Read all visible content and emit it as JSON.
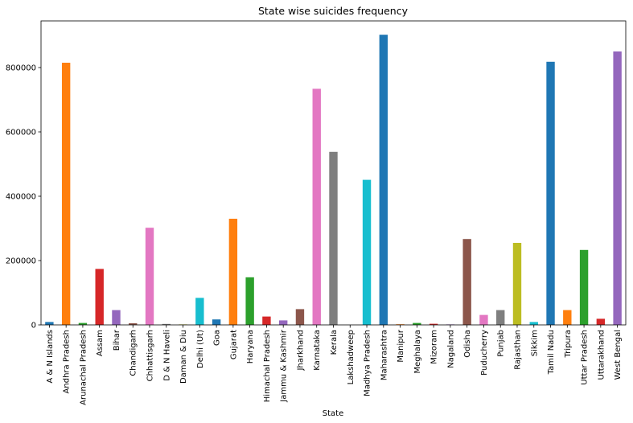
{
  "chart_data": {
    "type": "bar",
    "title": "State wise suicides frequency",
    "xlabel": "State",
    "ylabel": "",
    "ylim": [
      0,
      945000
    ],
    "yticks": [
      0,
      200000,
      400000,
      600000,
      800000
    ],
    "ytick_labels": [
      "0",
      "200000",
      "400000",
      "600000",
      "800000"
    ],
    "grid": false,
    "legend": "none",
    "categories": [
      "A & N Islands",
      "Andhra Pradesh",
      "Arunachal Pradesh",
      "Assam",
      "Bihar",
      "Chandigarh",
      "Chhattisgarh",
      "D & N Haveli",
      "Daman & Diu",
      "Delhi (Ut)",
      "Goa",
      "Gujarat",
      "Haryana",
      "Himachal Pradesh",
      "Jammu & Kashmir",
      "Jharkhand",
      "Karnataka",
      "Kerala",
      "Lakshadweep",
      "Madhya Pradesh",
      "Maharashtra",
      "Manipur",
      "Meghalaya",
      "Mizoram",
      "Nagaland",
      "Odisha",
      "Puducherry",
      "Punjab",
      "Rajasthan",
      "Sikkim",
      "Tamil Nadu",
      "Tripura",
      "Uttar Pradesh",
      "Uttarakhand",
      "West Bengal"
    ],
    "values": [
      9000,
      815000,
      6000,
      174000,
      46000,
      5000,
      302000,
      3000,
      1500,
      84000,
      17000,
      330000,
      148000,
      26000,
      14000,
      49000,
      734000,
      538000,
      100,
      451000,
      902000,
      2000,
      6000,
      3500,
      1500,
      267000,
      31000,
      46000,
      255000,
      9000,
      818000,
      46000,
      233000,
      19000,
      850000
    ],
    "colors": [
      "#1f77b4",
      "#ff7f0e",
      "#2ca02c",
      "#d62728",
      "#9467bd",
      "#8c564b",
      "#e377c2",
      "#7f7f7f",
      "#bcbd22",
      "#17becf"
    ]
  }
}
